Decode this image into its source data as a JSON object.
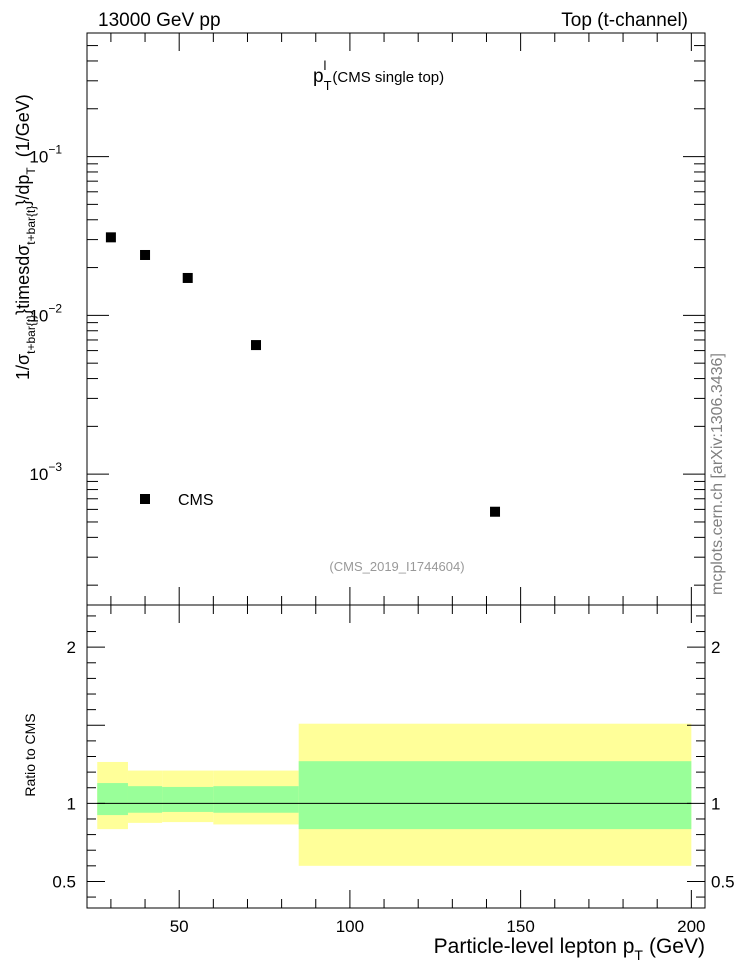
{
  "header": {
    "left": "13000 GeV pp",
    "right": "Top (t-channel)"
  },
  "watermark": "mcplots.cern.ch [arXiv:1306.3436]",
  "colors": {
    "band_outer": "#ffff99",
    "band_inner": "#99ff99",
    "marker": "#000000",
    "analysis_tag": "#999999"
  },
  "chart_data": [
    {
      "type": "scatter",
      "title": "p_T^l (CMS single top)",
      "title_main": "p",
      "title_sub": "T",
      "title_sup": "l",
      "title_rest": "(CMS single top)",
      "ylabel": "1/σ_{t+bar{t}}timesdσ_{t+bar{t}}/dp_T (1/GeV)",
      "ylabel_parts": {
        "a": "1/σ",
        "a_sub": "t+bar{t}",
        "b": "}timesdσ",
        "b_sub": "t+bar{t}",
        "c": "}/dp",
        "c_sub": "T",
        "d": "(1/GeV)"
      },
      "yscale": "log",
      "xlim": [
        23,
        204
      ],
      "ylim": [
        0.00015,
        0.6
      ],
      "y_tick_labels": [
        {
          "value": 0.1,
          "base": "10",
          "exp": "−1"
        },
        {
          "value": 0.01,
          "base": "10",
          "exp": "−2"
        },
        {
          "value": 0.001,
          "base": "10",
          "exp": "−3"
        }
      ],
      "series": [
        {
          "name": "CMS",
          "x": [
            30,
            40,
            52.5,
            72.5,
            142.5
          ],
          "y": [
            0.031,
            0.024,
            0.0172,
            0.0065,
            0.00058
          ]
        }
      ],
      "legend": {
        "position": "bottom-left",
        "label": "CMS"
      },
      "annotation": "(CMS_2019_I1744604)"
    },
    {
      "type": "area",
      "ylabel": "Ratio to CMS",
      "xlabel": "Particle-level lepton p_T (GeV)",
      "xlabel_parts": {
        "main": "Particle-level lepton p",
        "sub": "T",
        "unit": "(GeV)"
      },
      "xlim": [
        23,
        204
      ],
      "ylim": [
        0.33,
        2.27
      ],
      "x_ticks": [
        50,
        100,
        150,
        200
      ],
      "y_ticks": [
        0.5,
        1,
        1.5,
        2
      ],
      "y_tick_labels": [
        "0.5",
        "1",
        "2"
      ],
      "y_tick_label_values": [
        0.5,
        1,
        2
      ],
      "reference_line": 1,
      "bins": [
        {
          "x0": 26,
          "x1": 35,
          "outer": [
            0.835,
            1.265
          ],
          "inner": [
            0.925,
            1.13
          ]
        },
        {
          "x0": 35,
          "x1": 45,
          "outer": [
            0.875,
            1.21
          ],
          "inner": [
            0.94,
            1.11
          ]
        },
        {
          "x0": 45,
          "x1": 60,
          "outer": [
            0.88,
            1.21
          ],
          "inner": [
            0.945,
            1.105
          ]
        },
        {
          "x0": 60,
          "x1": 85,
          "outer": [
            0.865,
            1.21
          ],
          "inner": [
            0.94,
            1.11
          ]
        },
        {
          "x0": 85,
          "x1": 200,
          "outer": [
            0.6,
            1.51
          ],
          "inner": [
            0.835,
            1.27
          ]
        }
      ]
    }
  ]
}
